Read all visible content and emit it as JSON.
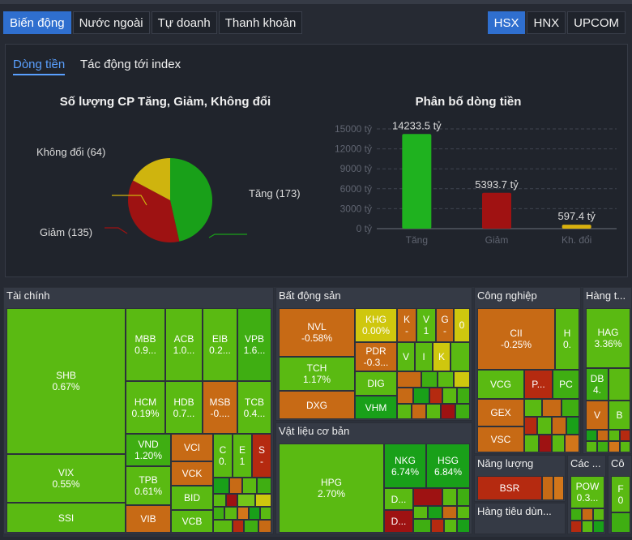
{
  "tabs": [
    "Biến động",
    "Nước ngoài",
    "Tự doanh",
    "Thanh khoản"
  ],
  "exchanges": [
    "HSX",
    "HNX",
    "UPCOM"
  ],
  "subtabs": [
    "Dòng tiền",
    "Tác động tới index"
  ],
  "pie": {
    "title": "Số lượng CP Tăng, Giảm, Không đổi",
    "labels": {
      "tang": "Tăng (173)",
      "giam": "Giảm (135)",
      "kd": "Không đổi (64)"
    }
  },
  "bar": {
    "title": "Phân bố dòng tiền",
    "ticks": [
      "15000 tỷ",
      "12000 tỷ",
      "9000 tỷ",
      "6000 tỷ",
      "3000 tỷ",
      "0 tỷ"
    ],
    "value_labels": [
      "14233.5 tỷ",
      "5393.7 tỷ",
      "597.4 tỷ"
    ]
  },
  "chart_data": [
    {
      "type": "pie",
      "title": "Số lượng CP Tăng, Giảm, Không đổi",
      "categories": [
        "Tăng",
        "Giảm",
        "Không đổi"
      ],
      "values": [
        173,
        135,
        64
      ],
      "colors": [
        "#19a019",
        "#9e1212",
        "#cfb40e"
      ]
    },
    {
      "type": "bar",
      "title": "Phân bố dòng tiền",
      "categories": [
        "Tăng",
        "Giảm",
        "Kh. đổi"
      ],
      "values": [
        14233.5,
        5393.7,
        597.4
      ],
      "ylim": [
        0,
        15000
      ],
      "colors": [
        "#1fb21f",
        "#a01212",
        "#d8b00e"
      ]
    }
  ],
  "heatmap": {
    "sections": {
      "taichinh": "Tài chính",
      "bds": "Bất động sản",
      "cn": "Công nghiệp",
      "ht": "Hàng t...",
      "vl": "Vật liệu cơ bản",
      "nl": "Năng lượng",
      "htd": "Hàng tiêu dùn...",
      "cac": "Các ...",
      "co": "Cô"
    },
    "cells": {
      "shb": [
        "SHB",
        "0.67%"
      ],
      "vix": [
        "VIX",
        "0.55%"
      ],
      "ssi": [
        "SSI",
        ""
      ],
      "mbb": [
        "MBB",
        "0.9..."
      ],
      "acb": [
        "ACB",
        "1.0..."
      ],
      "eib": [
        "EIB",
        "0.2..."
      ],
      "vpb": [
        "VPB",
        "1.6..."
      ],
      "hcm": [
        "HCM",
        "0.19%"
      ],
      "hdb": [
        "HDB",
        "0.7..."
      ],
      "msb": [
        "MSB",
        "-0...."
      ],
      "tcb": [
        "TCB",
        "0.4..."
      ],
      "vnd": [
        "VND",
        "1.20%"
      ],
      "vci": [
        "VCI",
        ""
      ],
      "c": [
        "C",
        "0."
      ],
      "e": [
        "E",
        "1"
      ],
      "s": [
        "S",
        "-"
      ],
      "tpb": [
        "TPB",
        "0.61%"
      ],
      "vck": [
        "VCK",
        ""
      ],
      "bid": [
        "BID",
        ""
      ],
      "vib": [
        "VIB",
        ""
      ],
      "vcb": [
        "VCB",
        ""
      ],
      "nvl": [
        "NVL",
        "-0.58%"
      ],
      "khg": [
        "KHG",
        "0.00%"
      ],
      "k": [
        "K",
        "-"
      ],
      "v": [
        "V",
        "1"
      ],
      "g": [
        "G",
        "-"
      ],
      "z": [
        "0",
        ""
      ],
      "tch": [
        "TCH",
        "1.17%"
      ],
      "pdr": [
        "PDR",
        "-0.3..."
      ],
      "dxg": [
        "DXG",
        ""
      ],
      "dig": [
        "DIG",
        ""
      ],
      "vhm": [
        "VHM",
        ""
      ],
      "vi": [
        "V",
        ""
      ],
      "ii": [
        "I",
        ""
      ],
      "kk": [
        "K",
        ""
      ],
      "cii": [
        "CII",
        "-0.25%"
      ],
      "h": [
        "H",
        "0."
      ],
      "vcg": [
        "VCG",
        ""
      ],
      "p": [
        "P...",
        ""
      ],
      "pc": [
        "PC",
        ""
      ],
      "gex": [
        "GEX",
        ""
      ],
      "vsc": [
        "VSC",
        ""
      ],
      "hag": [
        "HAG",
        "3.36%"
      ],
      "db": [
        "DB",
        "4."
      ],
      "vv": [
        "V",
        ""
      ],
      "bb": [
        "B",
        ""
      ],
      "hpg": [
        "HPG",
        "2.70%"
      ],
      "nkg": [
        "NKG",
        "6.74%"
      ],
      "hsg": [
        "HSG",
        "6.84%"
      ],
      "d1": [
        "D...",
        ""
      ],
      "d2": [
        "D...",
        ""
      ],
      "bsr": [
        "BSR",
        ""
      ],
      "pow": [
        "POW",
        "0.3..."
      ],
      "f": [
        "F",
        "0"
      ]
    }
  }
}
